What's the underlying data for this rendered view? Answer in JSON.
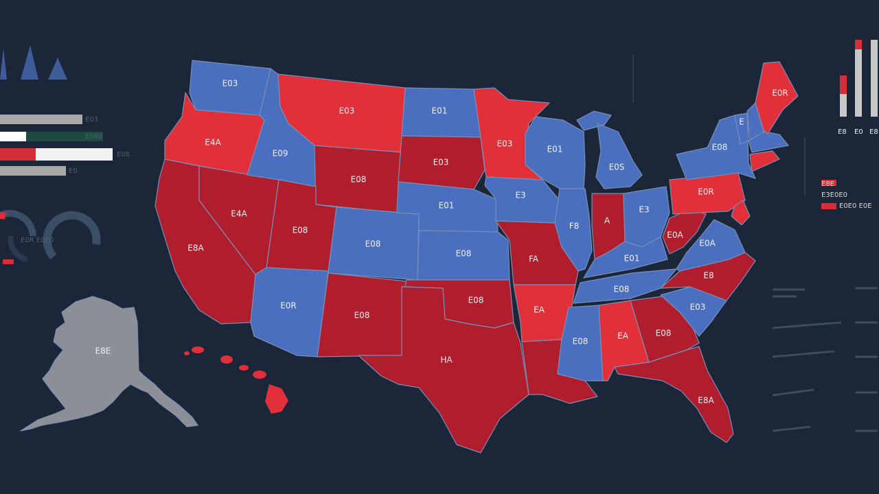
{
  "colors": {
    "background": "#1b2738",
    "blue": "#4a6fbf",
    "red_dark": "#b01e2e",
    "red_bright": "#e1303a",
    "alaska_gray": "#8c8f96",
    "bar_track": "#c8c8c8",
    "faint": "#3c4c60"
  },
  "map": {
    "states": [
      {
        "id": "wa",
        "color": "blue",
        "label": "E03"
      },
      {
        "id": "or",
        "color": "red_bright",
        "label": "E4A"
      },
      {
        "id": "ca",
        "color": "red_dark",
        "label": "E8A"
      },
      {
        "id": "nv",
        "color": "red_dark",
        "label": "E4A"
      },
      {
        "id": "id",
        "color": "blue",
        "label": "E09"
      },
      {
        "id": "mt",
        "color": "red_bright",
        "label": "E03"
      },
      {
        "id": "wy",
        "color": "red_dark",
        "label": "E08"
      },
      {
        "id": "ut",
        "color": "red_dark",
        "label": "E08"
      },
      {
        "id": "az",
        "color": "blue",
        "label": "E0R"
      },
      {
        "id": "co",
        "color": "blue",
        "label": "E08"
      },
      {
        "id": "nm",
        "color": "red_dark",
        "label": "E08"
      },
      {
        "id": "nd",
        "color": "blue",
        "label": "E01"
      },
      {
        "id": "sd",
        "color": "red_dark",
        "label": "E03"
      },
      {
        "id": "ne",
        "color": "blue",
        "label": "E01"
      },
      {
        "id": "ks",
        "color": "blue",
        "label": "E08"
      },
      {
        "id": "ok",
        "color": "red_dark",
        "label": "E08"
      },
      {
        "id": "tx",
        "color": "red_dark",
        "label": "HA"
      },
      {
        "id": "mn",
        "color": "red_bright",
        "label": "E03"
      },
      {
        "id": "ia",
        "color": "blue",
        "label": "E3"
      },
      {
        "id": "mo",
        "color": "red_dark",
        "label": "FA"
      },
      {
        "id": "ar",
        "color": "red_bright",
        "label": "EA"
      },
      {
        "id": "la",
        "color": "red_dark",
        "label": ""
      },
      {
        "id": "wi",
        "color": "blue",
        "label": "E01"
      },
      {
        "id": "il",
        "color": "blue",
        "label": "F8"
      },
      {
        "id": "mi",
        "color": "blue",
        "label": "E0S"
      },
      {
        "id": "in",
        "color": "red_dark",
        "label": "A"
      },
      {
        "id": "oh",
        "color": "blue",
        "label": "E3"
      },
      {
        "id": "ky",
        "color": "blue",
        "label": "E01"
      },
      {
        "id": "tn",
        "color": "blue",
        "label": "E08"
      },
      {
        "id": "ms",
        "color": "blue",
        "label": "E08"
      },
      {
        "id": "al",
        "color": "red_bright",
        "label": "EA"
      },
      {
        "id": "ga",
        "color": "red_dark",
        "label": "E08"
      },
      {
        "id": "fl",
        "color": "red_dark",
        "label": "E8A"
      },
      {
        "id": "sc",
        "color": "blue",
        "label": "E03"
      },
      {
        "id": "nc",
        "color": "red_dark",
        "label": "E8"
      },
      {
        "id": "va",
        "color": "blue",
        "label": "E0A"
      },
      {
        "id": "wv",
        "color": "red_dark",
        "label": "E0A"
      },
      {
        "id": "pa",
        "color": "red_bright",
        "label": "E0R"
      },
      {
        "id": "ny",
        "color": "blue",
        "label": "E08"
      },
      {
        "id": "nj",
        "color": "red_bright",
        "label": ""
      },
      {
        "id": "vt",
        "color": "blue",
        "label": "E"
      },
      {
        "id": "nh",
        "color": "blue",
        "label": ""
      },
      {
        "id": "ma",
        "color": "blue",
        "label": ""
      },
      {
        "id": "ct",
        "color": "red_bright",
        "label": ""
      },
      {
        "id": "me",
        "color": "red_bright",
        "label": "E0R"
      },
      {
        "id": "ak",
        "color": "alaska_gray",
        "label": "E8E"
      },
      {
        "id": "hi",
        "color": "red_bright",
        "label": ""
      }
    ]
  },
  "left_panel": {
    "bars": [
      {
        "fill": 0.0,
        "label": "E03"
      },
      {
        "fill": 0.3,
        "label": "E088"
      },
      {
        "fill": 0.32,
        "label": "E08"
      },
      {
        "fill": 0.0,
        "label": "E0"
      }
    ],
    "gauge_label": "E0R E0E0"
  },
  "right_panel": {
    "bars": [
      0.45,
      0.82,
      0.75
    ],
    "bar_labels": [
      "E8",
      "E0",
      "E8"
    ],
    "legend": [
      "E8E",
      "E3E0E0",
      "E0E0 E0E"
    ]
  }
}
